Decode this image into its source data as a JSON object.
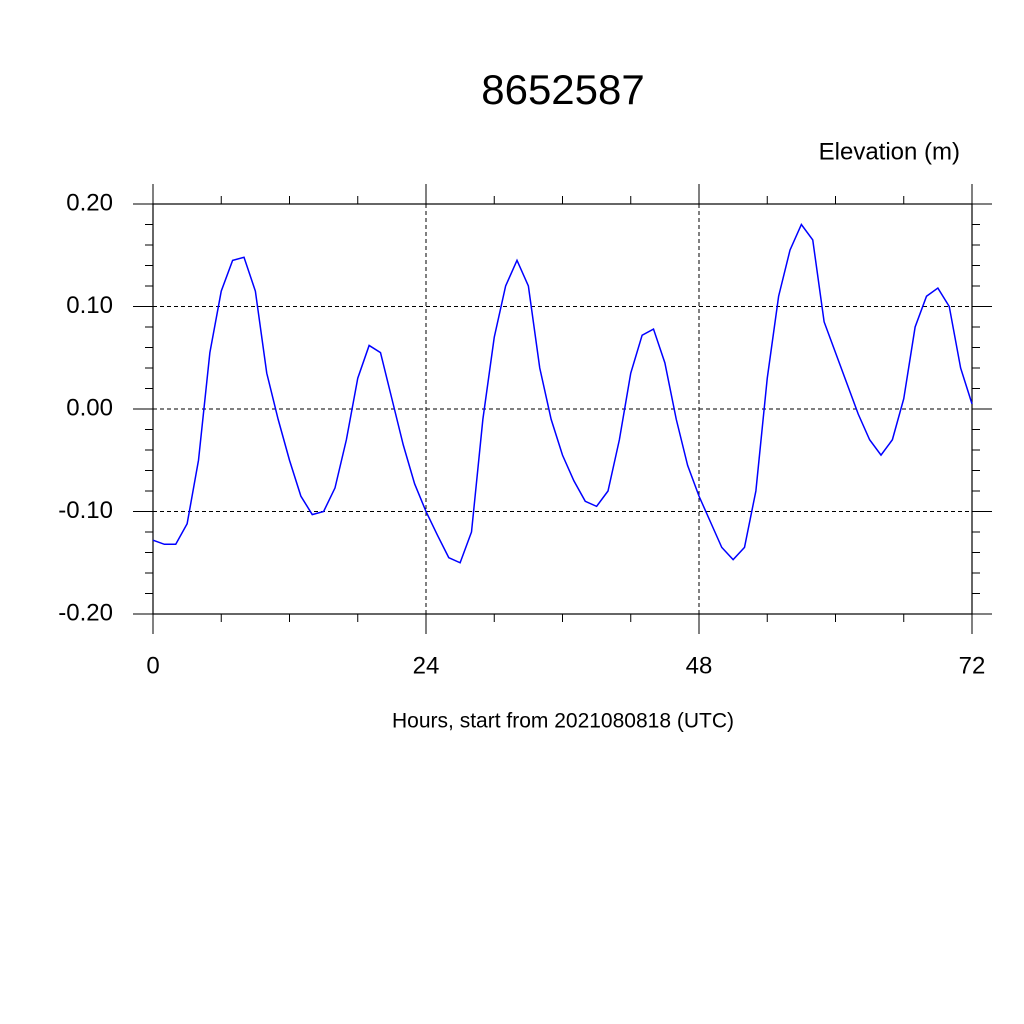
{
  "chart_data": {
    "type": "line",
    "title": "8652587",
    "subtitle": "Elevation (m)",
    "x_label": "Hours, start from 2021080818 (UTC)",
    "x": [
      0,
      1,
      2,
      3,
      4,
      5,
      6,
      7,
      8,
      9,
      10,
      11,
      12,
      13,
      14,
      15,
      16,
      17,
      18,
      19,
      20,
      21,
      22,
      23,
      24,
      25,
      26,
      27,
      28,
      29,
      30,
      31,
      32,
      33,
      34,
      35,
      36,
      37,
      38,
      39,
      40,
      41,
      42,
      43,
      44,
      45,
      46,
      47,
      48,
      49,
      50,
      51,
      52,
      53,
      54,
      55,
      56,
      57,
      58,
      59,
      60,
      61,
      62,
      63,
      64,
      65,
      66,
      67,
      68,
      69,
      70,
      71,
      72
    ],
    "series": [
      {
        "color": "#0000ff",
        "values": [
          -0.128,
          -0.132,
          -0.132,
          -0.112,
          -0.05,
          0.055,
          0.115,
          0.145,
          0.148,
          0.115,
          0.035,
          -0.01,
          -0.05,
          -0.085,
          -0.103,
          -0.1,
          -0.077,
          -0.03,
          0.03,
          0.062,
          0.055,
          0.01,
          -0.035,
          -0.073,
          -0.1,
          -0.123,
          -0.145,
          -0.15,
          -0.12,
          -0.01,
          0.07,
          0.12,
          0.145,
          0.12,
          0.04,
          -0.01,
          -0.045,
          -0.07,
          -0.09,
          -0.095,
          -0.08,
          -0.03,
          0.035,
          0.072,
          0.078,
          0.045,
          -0.01,
          -0.055,
          -0.085,
          -0.11,
          -0.135,
          -0.147,
          -0.135,
          -0.08,
          0.03,
          0.11,
          0.155,
          0.18,
          0.165,
          0.085,
          0.055,
          0.025,
          -0.005,
          -0.03,
          -0.045,
          -0.03,
          0.01,
          0.08,
          0.11,
          0.118,
          0.1,
          0.04,
          0.005
        ]
      }
    ],
    "xlim": [
      0,
      72
    ],
    "xticks": [
      0,
      24,
      48,
      72
    ],
    "ylim": [
      -0.2,
      0.2
    ],
    "yticks": [
      {
        "value": -0.2,
        "label": "-0.20"
      },
      {
        "value": -0.1,
        "label": "-0.10"
      },
      {
        "value": 0,
        "label": "0.00"
      },
      {
        "value": 0.1,
        "label": "0.10"
      },
      {
        "value": 0.2,
        "label": "0.20"
      }
    ],
    "x_minor_ticks": [
      6,
      12,
      18,
      30,
      36,
      42,
      54,
      60,
      66
    ],
    "y_minor_ticks": [
      -0.18,
      -0.16,
      -0.14,
      -0.12,
      -0.08,
      -0.06,
      -0.04,
      -0.02,
      0.02,
      0.04,
      0.06,
      0.08,
      0.12,
      0.14,
      0.16,
      0.18
    ],
    "grid": true
  }
}
